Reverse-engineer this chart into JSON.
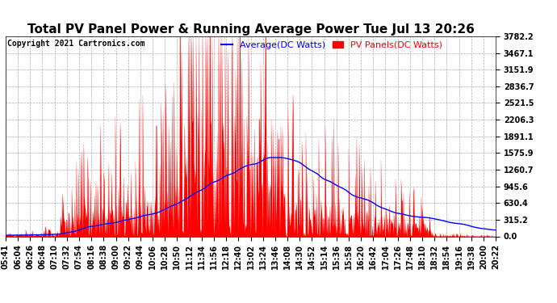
{
  "title": "Total PV Panel Power & Running Average Power Tue Jul 13 20:26",
  "copyright": "Copyright 2021 Cartronics.com",
  "legend_avg": "Average(DC Watts)",
  "legend_pv": "PV Panels(DC Watts)",
  "avg_color": "blue",
  "pv_color": "red",
  "pv_fill_color": "red",
  "background_color": "white",
  "grid_color": "#999999",
  "yticks": [
    0.0,
    315.2,
    630.4,
    945.6,
    1260.7,
    1575.9,
    1891.1,
    2206.3,
    2521.5,
    2836.7,
    3151.9,
    3467.1,
    3782.2
  ],
  "ymax": 3782.2,
  "ymin": 0.0,
  "title_fontsize": 11,
  "copyright_fontsize": 7,
  "legend_fontsize": 8,
  "tick_label_fontsize": 7,
  "time_labels": [
    "05:41",
    "06:04",
    "06:26",
    "06:48",
    "07:10",
    "07:32",
    "07:54",
    "08:16",
    "08:38",
    "09:00",
    "09:22",
    "09:44",
    "10:06",
    "10:28",
    "10:50",
    "11:12",
    "11:34",
    "11:56",
    "12:18",
    "12:40",
    "13:02",
    "13:24",
    "13:46",
    "14:08",
    "14:30",
    "14:52",
    "15:14",
    "15:36",
    "15:58",
    "16:20",
    "16:42",
    "17:04",
    "17:26",
    "17:48",
    "18:10",
    "18:32",
    "18:54",
    "19:16",
    "19:38",
    "20:00",
    "20:22"
  ]
}
